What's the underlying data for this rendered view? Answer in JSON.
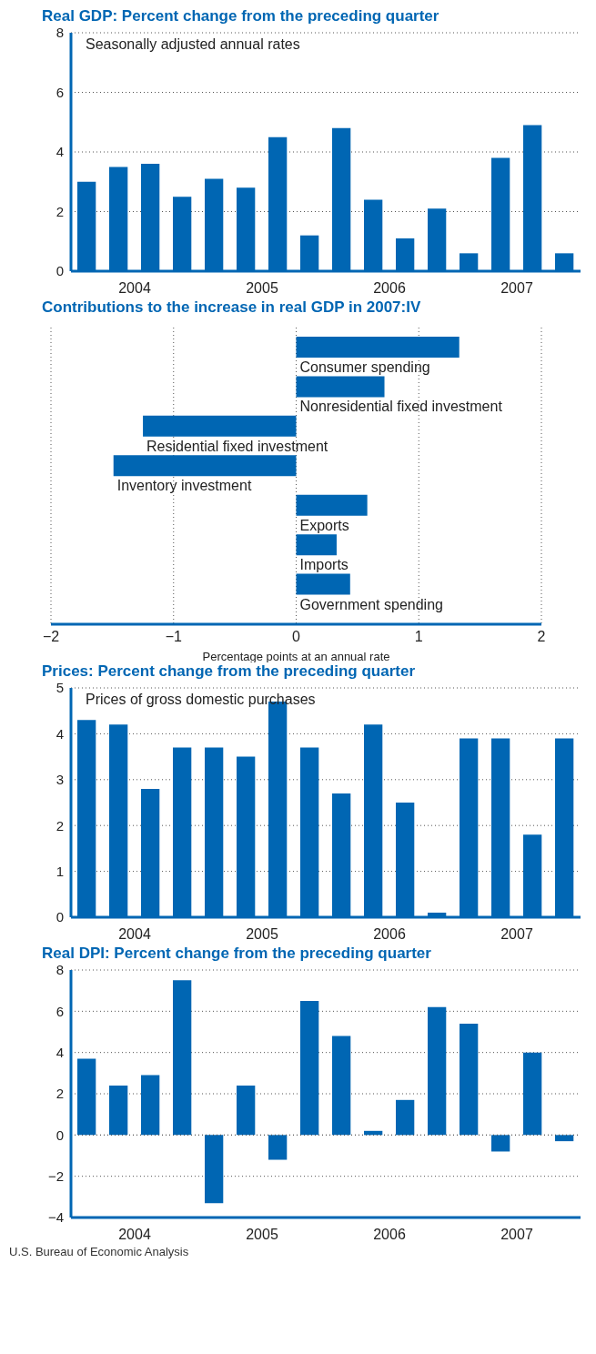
{
  "chart_data": [
    {
      "type": "bar",
      "title": "Real GDP: Percent change from the preceding quarter",
      "annotations": [
        "Seasonally adjusted annual rates"
      ],
      "categories": [
        null,
        "2004",
        null,
        null,
        null,
        "2005",
        null,
        null,
        null,
        "2006",
        null,
        null,
        null,
        "2007",
        null,
        null
      ],
      "values": [
        3.0,
        3.5,
        3.6,
        2.5,
        3.1,
        2.8,
        4.5,
        1.2,
        4.8,
        2.4,
        1.1,
        2.1,
        0.6,
        3.8,
        4.9,
        0.6
      ],
      "color": "#0066b3",
      "ylim": [
        0,
        8
      ],
      "yticks": [
        0,
        2,
        4,
        6,
        8
      ],
      "grid": "y"
    },
    {
      "type": "bar",
      "orientation": "horizontal",
      "title": "Contributions to the increase in real GDP in 2007:IV",
      "xlabel": "Percentage points at an annual rate",
      "categories": [
        "Consumer spending",
        "Nonresidential fixed investment",
        "Residential fixed investment",
        "Inventory investment",
        "Exports",
        "Imports",
        "Government spending"
      ],
      "values": [
        1.33,
        0.72,
        -1.25,
        -1.49,
        0.58,
        0.33,
        0.44
      ],
      "color": "#0066b3",
      "xlim": [
        -2,
        2
      ],
      "xticks": [
        {
          "value": -2,
          "label": "−2"
        },
        {
          "value": -1,
          "label": "−1"
        },
        0,
        1,
        2
      ],
      "grid": "x"
    },
    {
      "type": "bar",
      "title": "Prices: Percent change from the preceding quarter",
      "annotations": [
        "Prices of gross domestic purchases"
      ],
      "categories": [
        null,
        "2004",
        null,
        null,
        null,
        "2005",
        null,
        null,
        null,
        "2006",
        null,
        null,
        null,
        "2007",
        null,
        null
      ],
      "values": [
        4.3,
        4.2,
        2.8,
        3.7,
        3.7,
        3.5,
        4.7,
        3.7,
        2.7,
        4.2,
        2.5,
        0.1,
        3.9,
        3.9,
        1.8,
        3.9
      ],
      "color": "#0066b3",
      "ylim": [
        0,
        5
      ],
      "yticks": [
        0,
        1,
        2,
        3,
        4,
        5
      ],
      "grid": "y"
    },
    {
      "type": "bar",
      "title": "Real DPI: Percent change from the preceding quarter",
      "annotations": [
        "U.S. Bureau of Economic Analysis"
      ],
      "categories": [
        null,
        "2004",
        null,
        null,
        null,
        "2005",
        null,
        null,
        null,
        "2006",
        null,
        null,
        null,
        "2007",
        null,
        null
      ],
      "values": [
        3.7,
        2.4,
        2.9,
        7.5,
        -3.3,
        2.4,
        -1.2,
        6.5,
        4.8,
        0.2,
        1.7,
        6.2,
        5.4,
        -0.8,
        4.0,
        -0.3
      ],
      "color": "#0066b3",
      "ylim": [
        -4,
        8
      ],
      "yticks": [
        {
          "value": -4,
          "label": "−4"
        },
        {
          "value": -2,
          "label": "−2"
        },
        0,
        2,
        4,
        6,
        8
      ],
      "grid": "y"
    }
  ]
}
